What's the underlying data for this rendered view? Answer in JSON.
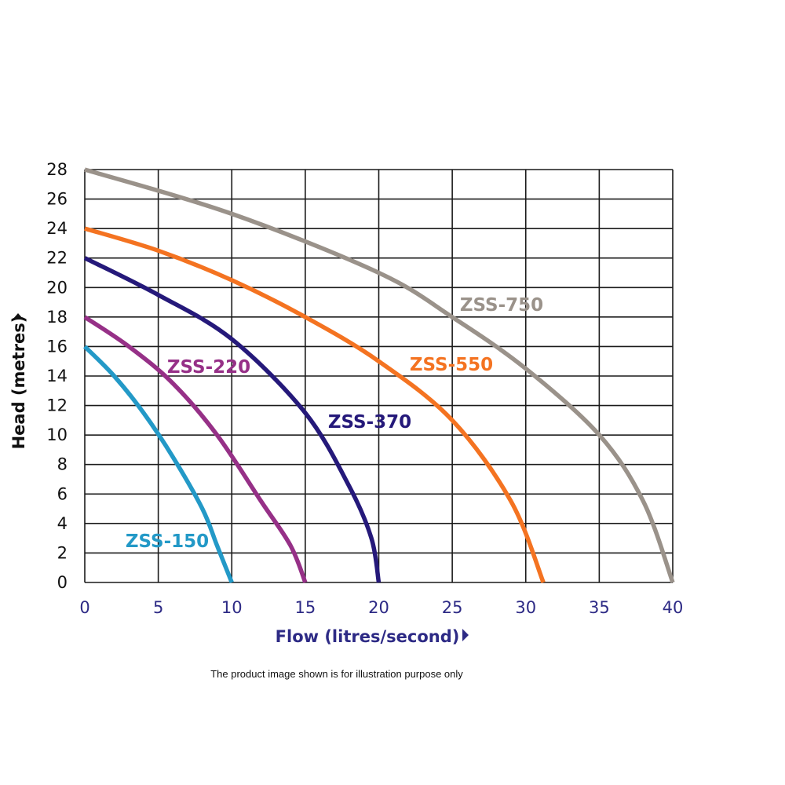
{
  "chart_data": {
    "type": "line",
    "xlabel": "Flow (litres/second)",
    "ylabel": "Head (metres)",
    "xlim": [
      0,
      40
    ],
    "ylim": [
      0,
      28
    ],
    "x_ticks": [
      0,
      5,
      10,
      15,
      20,
      25,
      30,
      35,
      40
    ],
    "y_ticks": [
      0,
      2,
      4,
      6,
      8,
      10,
      12,
      14,
      16,
      18,
      20,
      22,
      24,
      26,
      28
    ],
    "grid": true,
    "series": [
      {
        "name": "ZSS-150",
        "color": "#2399c7",
        "x": [
          0,
          2,
          4,
          6,
          8,
          9,
          10
        ],
        "y": [
          16,
          14,
          11.5,
          8.5,
          5,
          2.5,
          0
        ]
      },
      {
        "name": "ZSS-220",
        "color": "#963087",
        "x": [
          0,
          3,
          6,
          9,
          12,
          14,
          15
        ],
        "y": [
          18,
          16,
          13.5,
          10,
          5.5,
          2.5,
          0
        ]
      },
      {
        "name": "ZSS-370",
        "color": "#25197a",
        "x": [
          0,
          5,
          10,
          15,
          18,
          19.5,
          20
        ],
        "y": [
          22,
          19.5,
          16.5,
          11.5,
          6.5,
          3,
          0
        ]
      },
      {
        "name": "ZSS-550",
        "color": "#f47321",
        "x": [
          0,
          5,
          10,
          15,
          20,
          25,
          29,
          31.2
        ],
        "y": [
          24,
          22.5,
          20.5,
          18,
          15,
          11,
          5.5,
          0
        ]
      },
      {
        "name": "ZSS-750",
        "color": "#9a928a",
        "x": [
          0,
          10,
          20,
          25,
          30,
          35,
          38,
          40
        ],
        "y": [
          28,
          25,
          21,
          18,
          14.5,
          10,
          5.5,
          0
        ]
      }
    ]
  },
  "footnote": "The product image shown is for illustration purpose only"
}
